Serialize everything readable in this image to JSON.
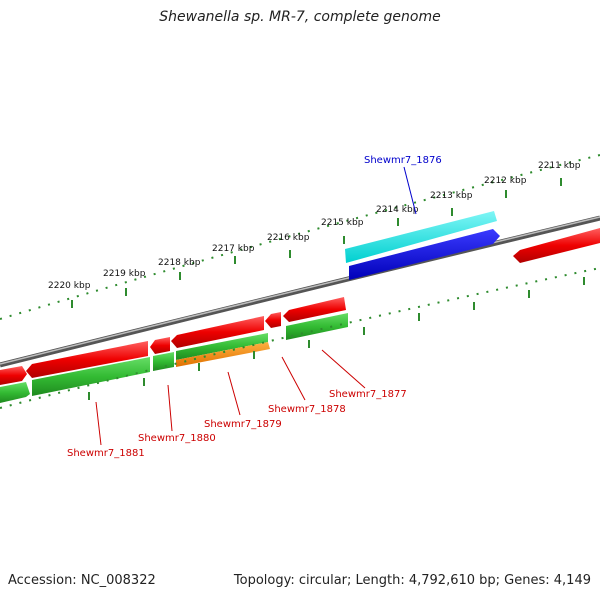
{
  "title": "Shewanella sp. MR-7, complete genome",
  "footer": {
    "accession": "Accession: NC_008322",
    "summary": "Topology: circular; Length: 4,792,610 bp; Genes: 4,149"
  },
  "ruler_labels": [
    "2220 kbp",
    "2219 kbp",
    "2218 kbp",
    "2217 kbp",
    "2216 kbp",
    "2215 kbp",
    "2214 kbp",
    "2213 kbp",
    "2212 kbp",
    "2211 kbp"
  ],
  "gene_labels": [
    {
      "text": "Shewmr7_1876",
      "color": "#0000cc"
    },
    {
      "text": "Shewmr7_1877",
      "color": "#cc0000"
    },
    {
      "text": "Shewmr7_1878",
      "color": "#cc0000"
    },
    {
      "text": "Shewmr7_1879",
      "color": "#cc0000"
    },
    {
      "text": "Shewmr7_1880",
      "color": "#cc0000"
    },
    {
      "text": "Shewmr7_1881",
      "color": "#cc0000"
    }
  ],
  "colors": {
    "backbone": "#7a7a7a",
    "ruler": "#2e8b2e",
    "forward_cds": "#ff0000",
    "reverse_cds": "#33cc33",
    "highlight_forward": "#00e5e5",
    "highlight_forward_2": "#0000ee",
    "highlight_reverse": "#ff8c00"
  }
}
